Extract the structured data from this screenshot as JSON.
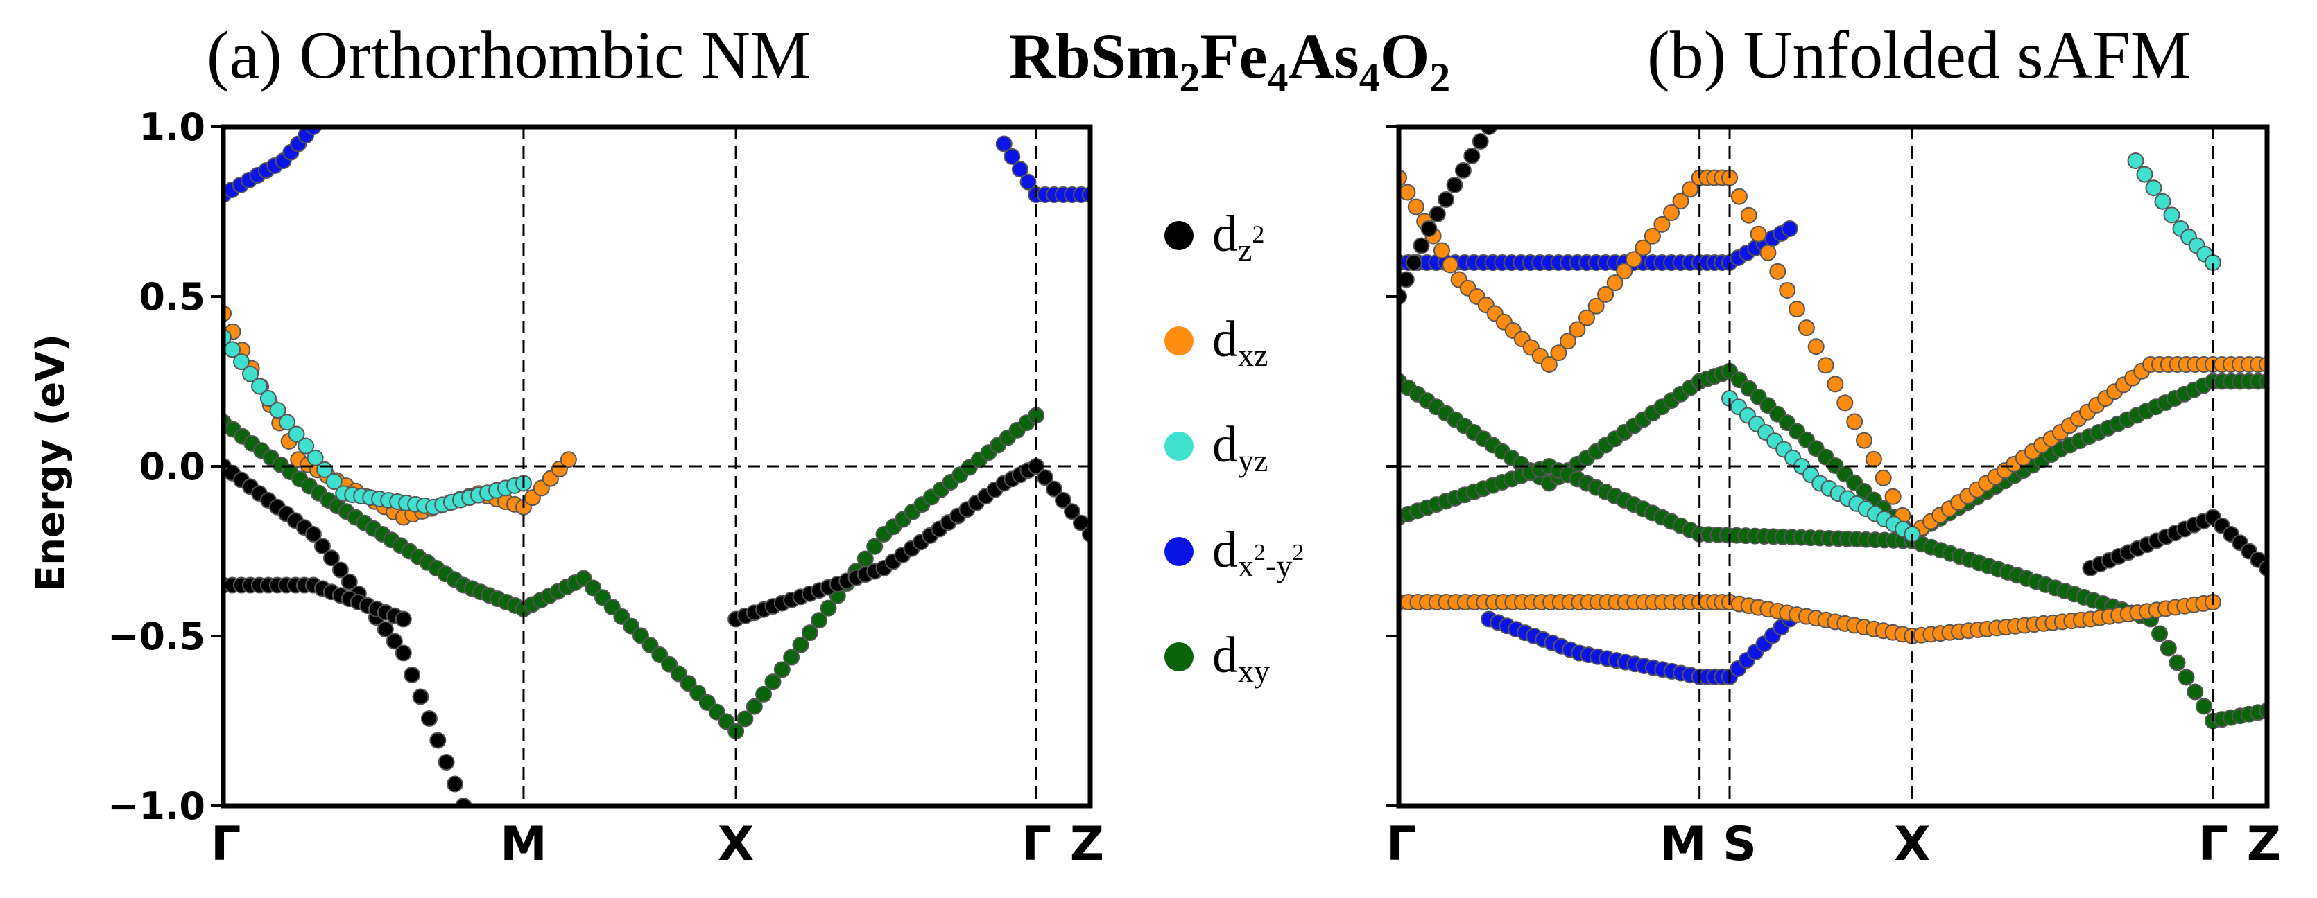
{
  "figure": {
    "formula": {
      "base1": "RbSm",
      "sub1": "2",
      "base2": "Fe",
      "sub2": "4",
      "base3": "As",
      "sub3": "4",
      "base4": "O",
      "sub4": "2"
    }
  },
  "legend": [
    {
      "name": "dz2",
      "base": "d",
      "sub": "z",
      "sup": "2",
      "color": "#000000"
    },
    {
      "name": "dxz",
      "base": "d",
      "sub": "xz",
      "color": "#ff8c0f"
    },
    {
      "name": "dyz",
      "base": "d",
      "sub": "yz",
      "color": "#40e0d0"
    },
    {
      "name": "dx2-y2",
      "base": "d",
      "subParts": [
        "x",
        "2",
        "-y",
        "2"
      ],
      "color": "#0a14e6"
    },
    {
      "name": "dxy",
      "base": "d",
      "sub": "xy",
      "color": "#0a640a"
    }
  ],
  "chart_data": [
    {
      "type": "scatter",
      "panel": "a",
      "title": "(a) Orthorhombic NM",
      "ylabel": "Energy (eV)",
      "xlabel": "",
      "ylim": [
        -1.0,
        1.0
      ],
      "yticks": [
        "1.0",
        "0.5",
        "0.0",
        "−0.5",
        "−1.0"
      ],
      "ytick_values": [
        1.0,
        0.5,
        0.0,
        -0.5,
        -1.0
      ],
      "k_points": [
        "Γ",
        "M",
        "X",
        "Γ",
        "Z"
      ],
      "k_positions": [
        0,
        1.0,
        1.7071,
        2.7071,
        2.8871
      ],
      "kmax": 2.8871,
      "fermi_level": 0.0,
      "series": [
        {
          "name": "dxy",
          "color": "#0a640a",
          "size": 11,
          "x": [
            0,
            0.35,
            0.8,
            1.0,
            1.2,
            1.7071,
            2.2,
            2.7071
          ],
          "y": [
            0.13,
            -0.1,
            -0.35,
            -0.42,
            -0.33,
            -0.78,
            -0.2,
            0.15
          ]
        },
        {
          "name": "dxz",
          "color": "#ff8c0f",
          "size": 11,
          "x": [
            0,
            0.25,
            0.6,
            0.85,
            1.0,
            1.15
          ],
          "y": [
            0.45,
            0.02,
            -0.15,
            -0.08,
            -0.12,
            0.02
          ]
        },
        {
          "name": "dyz",
          "color": "#40e0d0",
          "size": 11,
          "x": [
            0,
            0.15,
            0.4,
            0.7,
            1.0
          ],
          "y": [
            0.38,
            0.2,
            -0.08,
            -0.12,
            -0.05
          ]
        },
        {
          "name": "dz2",
          "color": "#000000",
          "size": 11,
          "x": [
            0,
            0.3,
            0.6,
            0.8
          ],
          "y": [
            0.0,
            -0.2,
            -0.55,
            -1.0
          ]
        },
        {
          "name": "dz2",
          "color": "#000000",
          "size": 11,
          "x": [
            1.7071,
            2.2,
            2.6,
            2.7071,
            2.8871
          ],
          "y": [
            -0.45,
            -0.3,
            -0.05,
            0.0,
            -0.2
          ]
        },
        {
          "name": "dz2",
          "color": "#000000",
          "size": 11,
          "x": [
            0,
            0.3,
            0.6
          ],
          "y": [
            -0.35,
            -0.35,
            -0.45
          ]
        },
        {
          "name": "dx2-y2",
          "color": "#0a14e6",
          "size": 11,
          "x": [
            0,
            0.2,
            0.3
          ],
          "y": [
            0.8,
            0.9,
            1.0
          ]
        },
        {
          "name": "dx2-y2",
          "color": "#0a14e6",
          "size": 11,
          "x": [
            2.6,
            2.7071,
            2.8871
          ],
          "y": [
            0.95,
            0.8,
            0.8
          ]
        }
      ]
    },
    {
      "type": "scatter",
      "panel": "b",
      "title": "(b) Unfolded sAFM",
      "ylabel": "",
      "xlabel": "",
      "ylim": [
        -1.0,
        1.0
      ],
      "ytick_values": [
        1.0,
        0.5,
        0.0,
        -0.5,
        -1.0
      ],
      "k_points": [
        "Γ",
        "M",
        "S",
        "X",
        "Γ",
        "Z"
      ],
      "k_positions": [
        0,
        1.0,
        1.1,
        1.7071,
        2.7071,
        2.8871
      ],
      "kmax": 2.8871,
      "fermi_level": 0.0,
      "series": [
        {
          "name": "dxy",
          "color": "#0a640a",
          "size": 11,
          "x": [
            0,
            0.5,
            1.0,
            1.1,
            1.7071,
            2.2,
            2.7071,
            2.8871
          ],
          "y": [
            0.25,
            -0.05,
            0.25,
            0.28,
            -0.2,
            0.05,
            0.25,
            0.25
          ]
        },
        {
          "name": "dxy",
          "color": "#0a640a",
          "size": 11,
          "x": [
            0,
            0.5,
            1.0,
            1.7071,
            2.5,
            2.7071,
            2.8871
          ],
          "y": [
            -0.15,
            0.0,
            -0.2,
            -0.22,
            -0.45,
            -0.75,
            -0.72
          ]
        },
        {
          "name": "dx2-y2",
          "color": "#0a14e6",
          "size": 11,
          "x": [
            0,
            0.5,
            1.0,
            1.1,
            1.3
          ],
          "y": [
            0.6,
            0.6,
            0.6,
            0.6,
            0.7
          ]
        },
        {
          "name": "dx2-y2",
          "color": "#0a14e6",
          "size": 11,
          "x": [
            0.3,
            0.6,
            1.0,
            1.1,
            1.3
          ],
          "y": [
            -0.45,
            -0.55,
            -0.62,
            -0.62,
            -0.45
          ]
        },
        {
          "name": "dxz",
          "color": "#ff8c0f",
          "size": 11,
          "x": [
            0,
            0.2,
            0.5,
            1.0,
            1.1,
            1.7071,
            2.2,
            2.5,
            2.7071,
            2.8871
          ],
          "y": [
            0.85,
            0.55,
            0.3,
            0.85,
            0.85,
            -0.2,
            0.1,
            0.3,
            0.3,
            0.3
          ]
        },
        {
          "name": "dxz",
          "color": "#ff8c0f",
          "size": 11,
          "x": [
            0,
            0.6,
            1.0,
            1.1,
            1.7071,
            2.3,
            2.7071
          ],
          "y": [
            -0.4,
            -0.4,
            -0.4,
            -0.4,
            -0.5,
            -0.45,
            -0.4
          ]
        },
        {
          "name": "dyz",
          "color": "#40e0d0",
          "size": 11,
          "x": [
            1.1,
            1.4,
            1.7071
          ],
          "y": [
            0.2,
            -0.05,
            -0.2
          ]
        },
        {
          "name": "dyz",
          "color": "#40e0d0",
          "size": 11,
          "x": [
            2.45,
            2.6,
            2.7071
          ],
          "y": [
            0.9,
            0.7,
            0.6
          ]
        },
        {
          "name": "dz2",
          "color": "#000000",
          "size": 11,
          "x": [
            0,
            0.1,
            0.3
          ],
          "y": [
            0.5,
            0.7,
            1.0
          ]
        },
        {
          "name": "dz2",
          "color": "#000000",
          "size": 11,
          "x": [
            2.3,
            2.7071,
            2.8871
          ],
          "y": [
            -0.3,
            -0.15,
            -0.3
          ]
        }
      ]
    }
  ]
}
